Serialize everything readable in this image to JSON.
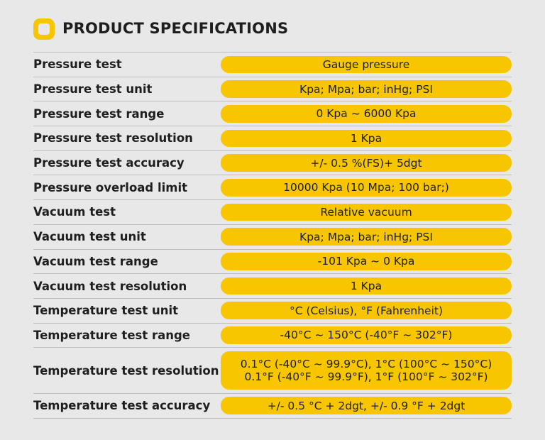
{
  "header": {
    "title": "PRODUCT SPECIFICATIONS"
  },
  "table": {
    "rows": [
      {
        "label": "Pressure test",
        "lines": [
          "Gauge pressure"
        ]
      },
      {
        "label": "Pressure test unit",
        "lines": [
          "Kpa; Mpa; bar; inHg; PSI"
        ]
      },
      {
        "label": "Pressure test range",
        "lines": [
          "0 Kpa ~ 6000 Kpa"
        ]
      },
      {
        "label": "Pressure test resolution",
        "lines": [
          "1 Kpa"
        ]
      },
      {
        "label": "Pressure test accuracy",
        "lines": [
          "+/- 0.5 %(FS)+ 5dgt"
        ]
      },
      {
        "label": "Pressure overload limit",
        "lines": [
          "10000 Kpa (10 Mpa; 100 bar;)"
        ]
      },
      {
        "label": "Vacuum test",
        "lines": [
          "Relative vacuum"
        ]
      },
      {
        "label": "Vacuum test unit",
        "lines": [
          "Kpa; Mpa; bar; inHg; PSI"
        ]
      },
      {
        "label": "Vacuum test range",
        "lines": [
          "-101 Kpa ~ 0 Kpa"
        ]
      },
      {
        "label": "Vacuum test resolution",
        "lines": [
          "1 Kpa"
        ]
      },
      {
        "label": "Temperature test unit",
        "lines": [
          "°C (Celsius), °F (Fahrenheit)"
        ]
      },
      {
        "label": "Temperature test range",
        "lines": [
          "-40°C ~ 150°C (-40°F ~ 302°F)"
        ]
      },
      {
        "label": "Temperature test resolution",
        "lines": [
          "0.1°C (-40°C ~ 99.9°C), 1°C (100°C ~ 150°C)",
          "0.1°F (-40°F ~ 99.9°F), 1°F (100°F ~ 302°F)"
        ]
      },
      {
        "label": "Temperature test accuracy",
        "lines": [
          "+/- 0.5 °C + 2dgt,  +/- 0.9 °F + 2dgt"
        ]
      }
    ]
  }
}
